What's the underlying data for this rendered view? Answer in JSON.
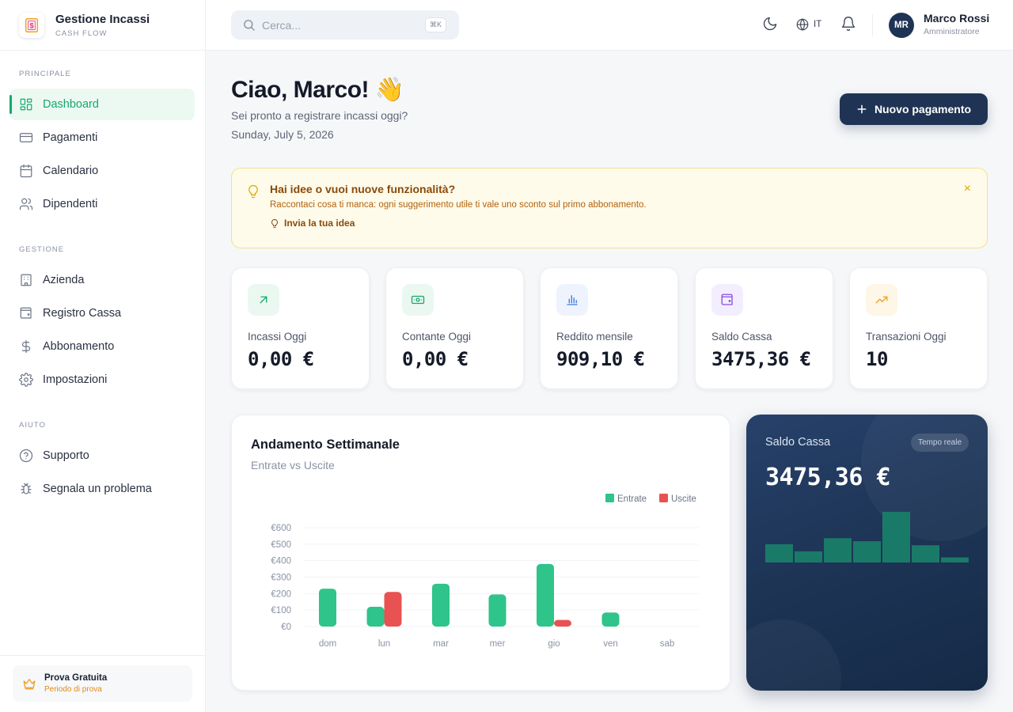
{
  "brand": {
    "title": "Gestione Incassi",
    "subtitle": "CASH FLOW"
  },
  "sidebar": {
    "sections": [
      {
        "label": "PRINCIPALE",
        "items": [
          {
            "label": "Dashboard",
            "icon": "grid-icon",
            "active": true
          },
          {
            "label": "Pagamenti",
            "icon": "credit-card-icon"
          },
          {
            "label": "Calendario",
            "icon": "calendar-icon"
          },
          {
            "label": "Dipendenti",
            "icon": "users-icon"
          }
        ]
      },
      {
        "label": "GESTIONE",
        "items": [
          {
            "label": "Azienda",
            "icon": "building-icon"
          },
          {
            "label": "Registro Cassa",
            "icon": "wallet-icon"
          },
          {
            "label": "Abbonamento",
            "icon": "dollar-icon"
          },
          {
            "label": "Impostazioni",
            "icon": "gear-icon"
          }
        ]
      },
      {
        "label": "AIUTO",
        "items": [
          {
            "label": "Supporto",
            "icon": "help-circle-icon"
          },
          {
            "label": "Segnala un problema",
            "icon": "bug-icon"
          }
        ]
      }
    ],
    "trial": {
      "title": "Prova Gratuita",
      "subtitle": "Periodo di prova"
    }
  },
  "topbar": {
    "search_placeholder": "Cerca...",
    "search_shortcut": "⌘K",
    "language": "IT",
    "user": {
      "initials": "MR",
      "name": "Marco Rossi",
      "role": "Amministratore"
    }
  },
  "greeting": {
    "title": "Ciao, Marco! 👋",
    "subtitle": "Sei pronto a registrare incassi oggi?",
    "date": "Sunday, July 5, 2026"
  },
  "new_payment_label": "Nuovo pagamento",
  "banner": {
    "title": "Hai idee o vuoi nuove funzionalità?",
    "text": "Raccontaci cosa ti manca: ogni suggerimento utile ti vale uno sconto sul primo abbonamento.",
    "link": "Invia la tua idea",
    "close": "×"
  },
  "stats": [
    {
      "label": "Incassi Oggi",
      "value": "0,00 €",
      "icon": "arrow-up-right-icon",
      "color": "#17a86b",
      "bg": "#eaf8f1"
    },
    {
      "label": "Contante Oggi",
      "value": "0,00 €",
      "icon": "banknote-icon",
      "color": "#17a86b",
      "bg": "#eaf8f1"
    },
    {
      "label": "Reddito mensile",
      "value": "909,10 €",
      "icon": "bar-chart-icon",
      "color": "#3b7be0",
      "bg": "#eef3fd"
    },
    {
      "label": "Saldo Cassa",
      "value": "3475,36 €",
      "icon": "wallet-icon",
      "color": "#8b4fe0",
      "bg": "#f3eefd"
    },
    {
      "label": "Transazioni Oggi",
      "value": "10",
      "icon": "trending-up-icon",
      "color": "#f0a020",
      "bg": "#fef6e6"
    }
  ],
  "weekly": {
    "title": "Andamento Settimanale",
    "subtitle": "Entrate vs Uscite"
  },
  "cash_card": {
    "title": "Saldo Cassa",
    "badge": "Tempo reale",
    "value": "3475,36 €",
    "bar_color": "#1a7a68",
    "bars": [
      0.36,
      0.22,
      0.48,
      0.42,
      1.0,
      0.34,
      0.1
    ]
  },
  "chart_data": {
    "type": "bar",
    "title": "Andamento Settimanale",
    "subtitle": "Entrate vs Uscite",
    "categories": [
      "dom",
      "lun",
      "mar",
      "mer",
      "gio",
      "ven",
      "sab"
    ],
    "series": [
      {
        "name": "Entrate",
        "color": "#2ec48a",
        "values": [
          230,
          120,
          260,
          195,
          380,
          85,
          0
        ]
      },
      {
        "name": "Uscite",
        "color": "#e85252",
        "values": [
          0,
          210,
          0,
          0,
          40,
          0,
          0
        ]
      }
    ],
    "yticks": [
      "€600",
      "€500",
      "€400",
      "€300",
      "€200",
      "€100",
      "€0"
    ],
    "ylim": [
      0,
      600
    ],
    "legend": "top-right",
    "grid": true
  }
}
